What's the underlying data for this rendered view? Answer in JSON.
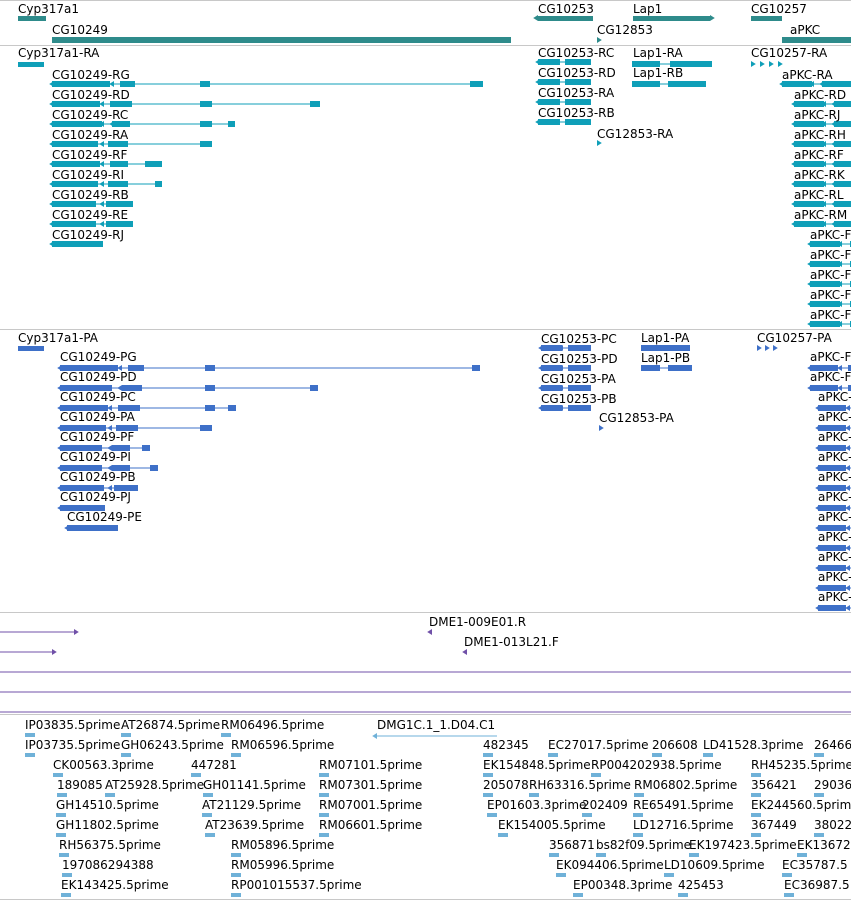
{
  "colors": {
    "gene": "#2e8b8b",
    "transcript": "#0f9fb8",
    "protein": "#3e70c8",
    "clone": "#7050a8",
    "est": "#6fb1d8",
    "separator": "#c8c8c8"
  },
  "tracks": {
    "genes": [
      {
        "label": "Cyp317a1",
        "color": "gene"
      },
      {
        "label": "CG10249",
        "color": "gene"
      },
      {
        "label": "CG10253",
        "color": "gene"
      },
      {
        "label": "CG12853",
        "color": "gene"
      },
      {
        "label": "Lap1",
        "color": "gene"
      },
      {
        "label": "CG10257",
        "color": "gene"
      },
      {
        "label": "aPKC",
        "color": "gene"
      }
    ],
    "transcripts": [
      {
        "label": "Cyp317a1-RA"
      },
      {
        "label": "CG10249-RG"
      },
      {
        "label": "CG10249-RD"
      },
      {
        "label": "CG10249-RC"
      },
      {
        "label": "CG10249-RA"
      },
      {
        "label": "CG10249-RF"
      },
      {
        "label": "CG10249-RI"
      },
      {
        "label": "CG10249-RB"
      },
      {
        "label": "CG10249-RE"
      },
      {
        "label": "CG10249-RJ"
      },
      {
        "label": "CG10253-RC"
      },
      {
        "label": "CG10253-RD"
      },
      {
        "label": "CG10253-RA"
      },
      {
        "label": "CG10253-RB"
      },
      {
        "label": "CG12853-RA"
      },
      {
        "label": "Lap1-RA"
      },
      {
        "label": "Lap1-RB"
      },
      {
        "label": "CG10257-RA"
      },
      {
        "label": "aPKC-RA"
      },
      {
        "label": "aPKC-RD"
      },
      {
        "label": "aPKC-RJ"
      },
      {
        "label": "aPKC-RH"
      },
      {
        "label": "aPKC-RF"
      },
      {
        "label": "aPKC-RK"
      },
      {
        "label": "aPKC-RL"
      },
      {
        "label": "aPKC-RM"
      },
      {
        "label": "aPKC-F"
      },
      {
        "label": "aPKC-F"
      },
      {
        "label": "aPKC-F"
      },
      {
        "label": "aPKC-F"
      },
      {
        "label": "aPKC-F"
      }
    ],
    "proteins": [
      {
        "label": "Cyp317a1-PA"
      },
      {
        "label": "CG10249-PG"
      },
      {
        "label": "CG10249-PD"
      },
      {
        "label": "CG10249-PC"
      },
      {
        "label": "CG10249-PA"
      },
      {
        "label": "CG10249-PF"
      },
      {
        "label": "CG10249-PI"
      },
      {
        "label": "CG10249-PB"
      },
      {
        "label": "CG10249-PJ"
      },
      {
        "label": "CG10249-PE"
      },
      {
        "label": "CG10253-PC"
      },
      {
        "label": "CG10253-PD"
      },
      {
        "label": "CG10253-PA"
      },
      {
        "label": "CG10253-PB"
      },
      {
        "label": "CG12853-PA"
      },
      {
        "label": "Lap1-PA"
      },
      {
        "label": "Lap1-PB"
      },
      {
        "label": "CG10257-PA"
      },
      {
        "label": "aPKC-F"
      },
      {
        "label": "aPKC-F"
      },
      {
        "label": "aPKC-"
      },
      {
        "label": "aPKC-"
      },
      {
        "label": "aPKC-"
      },
      {
        "label": "aPKC-"
      },
      {
        "label": "aPKC-"
      },
      {
        "label": "aPKC-"
      },
      {
        "label": "aPKC-"
      },
      {
        "label": "aPKC-"
      },
      {
        "label": "aPKC-"
      },
      {
        "label": "aPKC-"
      },
      {
        "label": "aPKC-"
      },
      {
        "label": "aPKC-"
      },
      {
        "label": "aPKC"
      },
      {
        "label": "aPK"
      }
    ],
    "clones": [
      {
        "label": "DME1-009E01.R"
      },
      {
        "label": "DME1-013L21.F"
      }
    ],
    "ests": [
      {
        "label": "IP03835.5prime"
      },
      {
        "label": "AT26874.5prime"
      },
      {
        "label": "RM06496.5prime"
      },
      {
        "label": "DMG1C.1_1.D04.C1"
      },
      {
        "label": "IP03735.5prime"
      },
      {
        "label": "GH06243.5prime"
      },
      {
        "label": "RM06596.5prime"
      },
      {
        "label": "482345"
      },
      {
        "label": "EC27017.5prime"
      },
      {
        "label": "206608"
      },
      {
        "label": "LD41528.3prime"
      },
      {
        "label": "26466"
      },
      {
        "label": "CK00563.3prime"
      },
      {
        "label": "447281"
      },
      {
        "label": "RM07101.5prime"
      },
      {
        "label": "EK154848.5prime"
      },
      {
        "label": "RP004202938.5prime"
      },
      {
        "label": "RH45235.5prime"
      },
      {
        "label": "189085"
      },
      {
        "label": "AT25928.5prime"
      },
      {
        "label": "GH01141.5prime"
      },
      {
        "label": "RM07301.5prime"
      },
      {
        "label": "205078"
      },
      {
        "label": "RH63316.5prime"
      },
      {
        "label": "RM06802.5prime"
      },
      {
        "label": "356421"
      },
      {
        "label": "29036"
      },
      {
        "label": "GH14510.5prime"
      },
      {
        "label": "AT21129.5prime"
      },
      {
        "label": "RM07001.5prime"
      },
      {
        "label": "EP01603.3prime"
      },
      {
        "label": "202409"
      },
      {
        "label": "RE65491.5prime"
      },
      {
        "label": "EK244560.5prime"
      },
      {
        "label": "GH11802.5prime"
      },
      {
        "label": "AT23639.5prime"
      },
      {
        "label": "RM06601.5prime"
      },
      {
        "label": "EK154005.5prime"
      },
      {
        "label": "LD12716.5prime"
      },
      {
        "label": "367449"
      },
      {
        "label": "38022"
      },
      {
        "label": "RH56375.5prime"
      },
      {
        "label": "RM05896.5prime"
      },
      {
        "label": "356871"
      },
      {
        "label": "bs82f09.5prime"
      },
      {
        "label": "EK197423.5prime"
      },
      {
        "label": "EK13672"
      },
      {
        "label": "197086294388"
      },
      {
        "label": "RM05996.5prime"
      },
      {
        "label": "EK094406.5prime"
      },
      {
        "label": "LD10609.5prime"
      },
      {
        "label": "EC35787.5"
      },
      {
        "label": "EK143425.5prime"
      },
      {
        "label": "RP001015537.5prime"
      },
      {
        "label": "EP00348.3prime"
      },
      {
        "label": "425453"
      },
      {
        "label": "EC36987.5"
      }
    ]
  }
}
